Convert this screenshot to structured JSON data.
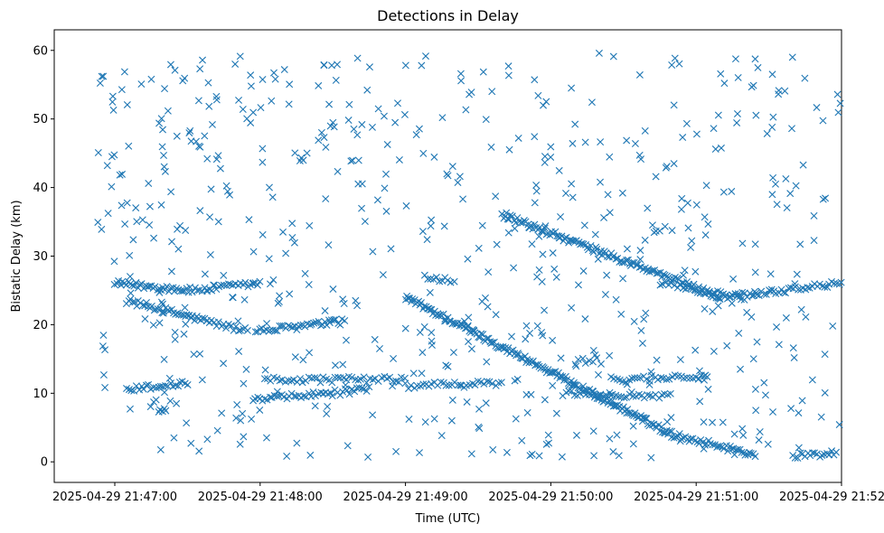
{
  "chart_data": {
    "type": "scatter",
    "title": "Detections in Delay",
    "xlabel": "Time (UTC)",
    "ylabel": "Bistatic Delay (km)",
    "marker": "x",
    "color": "#1f77b4",
    "x_unit": "seconds after 2025-04-29 21:47:00",
    "xlim": [
      -25,
      300
    ],
    "ylim": [
      -3,
      63
    ],
    "x_ticks": [
      {
        "value": 0,
        "label": "2025-04-29 21:47:00"
      },
      {
        "value": 60,
        "label": "2025-04-29 21:48:00"
      },
      {
        "value": 120,
        "label": "2025-04-29 21:49:00"
      },
      {
        "value": 180,
        "label": "2025-04-29 21:50:00"
      },
      {
        "value": 240,
        "label": "2025-04-29 21:51:00"
      },
      {
        "value": 300,
        "label": "2025-04-29 21:52:00"
      }
    ],
    "y_ticks": [
      0,
      10,
      20,
      30,
      40,
      50,
      60
    ],
    "tracks": [
      {
        "x_start": 5,
        "x_end": 38,
        "y_start": 23.5,
        "y_end": 20.5,
        "step": 0.8
      },
      {
        "x_start": 38,
        "x_end": 55,
        "y_start": 20.5,
        "y_end": 19,
        "step": 1.0
      },
      {
        "x_start": 0,
        "x_end": 32,
        "y_start": 26,
        "y_end": 25,
        "step": 0.8
      },
      {
        "x_start": 32,
        "x_end": 60,
        "y_start": 25,
        "y_end": 26,
        "step": 1.0
      },
      {
        "x_start": 5,
        "x_end": 30,
        "y_start": 10.5,
        "y_end": 11.5,
        "step": 1.0
      },
      {
        "x_start": 58,
        "x_end": 95,
        "y_start": 19,
        "y_end": 20.5,
        "step": 0.9
      },
      {
        "x_start": 57,
        "x_end": 105,
        "y_start": 9,
        "y_end": 10.5,
        "step": 1.0
      },
      {
        "x_start": 62,
        "x_end": 120,
        "y_start": 12,
        "y_end": 12,
        "step": 1.2
      },
      {
        "x_start": 120,
        "x_end": 230,
        "y_start": 24,
        "y_end": 4,
        "step": 0.6
      },
      {
        "x_start": 230,
        "x_end": 265,
        "y_start": 4,
        "y_end": 1,
        "step": 0.8
      },
      {
        "x_start": 280,
        "x_end": 298,
        "y_start": 0.8,
        "y_end": 1.3,
        "step": 1.0
      },
      {
        "x_start": 160,
        "x_end": 250,
        "y_start": 36,
        "y_end": 24,
        "step": 0.7
      },
      {
        "x_start": 250,
        "x_end": 300,
        "y_start": 24,
        "y_end": 26,
        "step": 1.0
      },
      {
        "x_start": 185,
        "x_end": 230,
        "y_start": 10,
        "y_end": 9.5,
        "step": 1.2
      },
      {
        "x_start": 205,
        "x_end": 245,
        "y_start": 12,
        "y_end": 12.5,
        "step": 1.2
      },
      {
        "x_start": 120,
        "x_end": 160,
        "y_start": 11,
        "y_end": 11.5,
        "step": 1.2
      },
      {
        "x_start": 225,
        "x_end": 260,
        "y_start": 26,
        "y_end": 24,
        "step": 1.2
      },
      {
        "x_start": 190,
        "x_end": 200,
        "y_start": 14.5,
        "y_end": 15,
        "step": 1.5
      },
      {
        "x_start": 18,
        "x_end": 22,
        "y_start": 7.5,
        "y_end": 7.5,
        "step": 0.8
      },
      {
        "x_start": 128,
        "x_end": 140,
        "y_start": 27,
        "y_end": 26.5,
        "step": 1.2
      }
    ],
    "scatter_noise": {
      "count": 620,
      "seed": 12345,
      "x_range": [
        -7,
        300
      ],
      "y_range": [
        0.5,
        59.8
      ]
    }
  }
}
